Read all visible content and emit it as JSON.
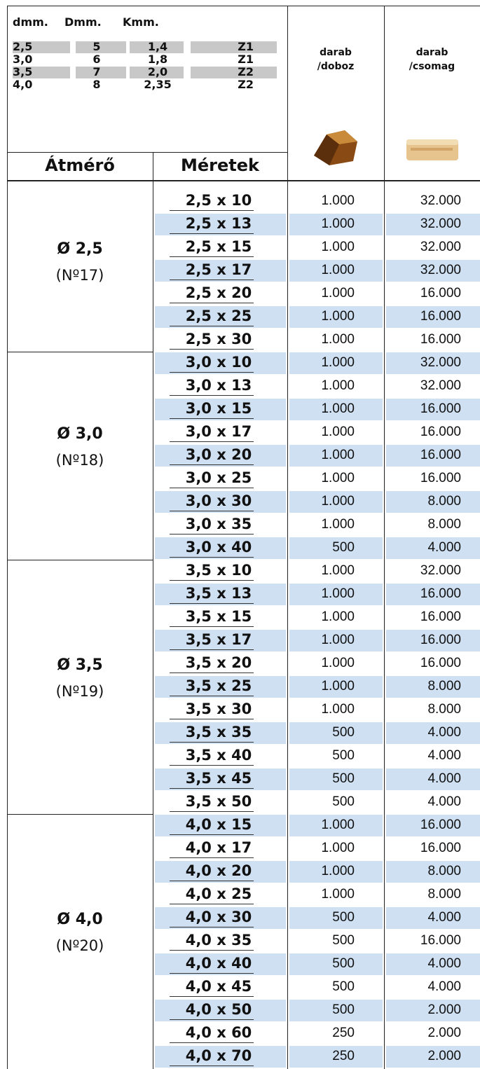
{
  "header": {
    "spec": {
      "columns": [
        "dmm.",
        "Dmm.",
        "Kmm."
      ],
      "rows": [
        [
          "2,5",
          "5",
          "1,4",
          "Z1"
        ],
        [
          "3,0",
          "6",
          "1,8",
          "Z1"
        ],
        [
          "3,5",
          "7",
          "2,0",
          "Z2"
        ],
        [
          "4,0",
          "8",
          "2,35",
          "Z2"
        ]
      ]
    },
    "box_label": [
      "darab",
      "/doboz"
    ],
    "pack_label": [
      "darab",
      "/csomag"
    ],
    "diameter_label": "Átmérő",
    "size_label": "Méretek"
  },
  "table": {
    "groups": [
      {
        "diameter": "Ø 2,5",
        "code": "(Nº17)",
        "rows": [
          [
            "2,5 x 10",
            "1.000",
            "32.000"
          ],
          [
            "2,5 x 13",
            "1.000",
            "32.000"
          ],
          [
            "2,5 x 15",
            "1.000",
            "32.000"
          ],
          [
            "2,5 x 17",
            "1.000",
            "32.000"
          ],
          [
            "2,5 x 20",
            "1.000",
            "16.000"
          ],
          [
            "2,5 x 25",
            "1.000",
            "16.000"
          ],
          [
            "2,5 x 30",
            "1.000",
            "16.000"
          ]
        ]
      },
      {
        "diameter": "Ø 3,0",
        "code": "(Nº18)",
        "rows": [
          [
            "3,0 x 10",
            "1.000",
            "32.000"
          ],
          [
            "3,0 x 13",
            "1.000",
            "32.000"
          ],
          [
            "3,0 x 15",
            "1.000",
            "16.000"
          ],
          [
            "3,0 x 17",
            "1.000",
            "16.000"
          ],
          [
            "3,0 x 20",
            "1.000",
            "16.000"
          ],
          [
            "3,0 x 25",
            "1.000",
            "16.000"
          ],
          [
            "3,0 x 30",
            "1.000",
            "8.000"
          ],
          [
            "3,0 x 35",
            "1.000",
            "8.000"
          ],
          [
            "3,0 x 40",
            "500",
            "4.000"
          ]
        ]
      },
      {
        "diameter": "Ø 3,5",
        "code": "(Nº19)",
        "rows": [
          [
            "3,5 x 10",
            "1.000",
            "32.000"
          ],
          [
            "3,5 x 13",
            "1.000",
            "16.000"
          ],
          [
            "3,5 x 15",
            "1.000",
            "16.000"
          ],
          [
            "3,5 x 17",
            "1.000",
            "16.000"
          ],
          [
            "3,5 x 20",
            "1.000",
            "16.000"
          ],
          [
            "3,5 x 25",
            "1.000",
            "8.000"
          ],
          [
            "3,5 x 30",
            "1.000",
            "8.000"
          ],
          [
            "3,5 x 35",
            "500",
            "4.000"
          ],
          [
            "3,5 x 40",
            "500",
            "4.000"
          ],
          [
            "3,5 x 45",
            "500",
            "4.000"
          ],
          [
            "3,5 x 50",
            "500",
            "4.000"
          ]
        ]
      },
      {
        "diameter": "Ø 4,0",
        "code": "(Nº20)",
        "rows": [
          [
            "4,0 x 15",
            "1.000",
            "16.000"
          ],
          [
            "4,0 x 17",
            "1.000",
            "16.000"
          ],
          [
            "4,0 x 20",
            "1.000",
            "8.000"
          ],
          [
            "4,0 x 25",
            "1.000",
            "8.000"
          ],
          [
            "4,0 x 30",
            "500",
            "4.000"
          ],
          [
            "4,0 x 35",
            "500",
            "16.000"
          ],
          [
            "4,0 x 40",
            "500",
            "4.000"
          ],
          [
            "4,0 x 45",
            "500",
            "4.000"
          ],
          [
            "4,0 x 50",
            "500",
            "2.000"
          ],
          [
            "4,0 x 60",
            "250",
            "2.000"
          ],
          [
            "4,0 x 70",
            "250",
            "2.000"
          ]
        ]
      }
    ]
  }
}
